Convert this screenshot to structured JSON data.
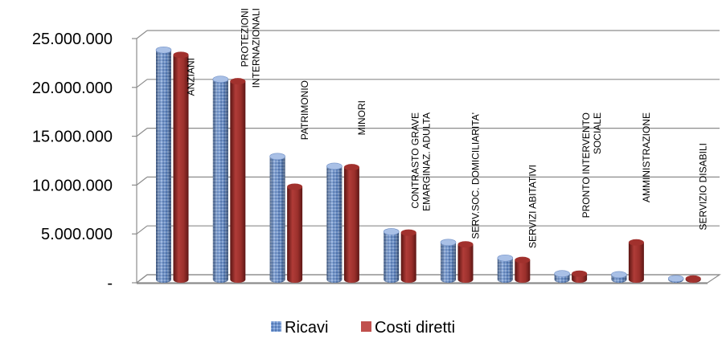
{
  "chart_data": {
    "type": "bar",
    "title": "",
    "xlabel": "",
    "ylabel": "",
    "ylim": [
      0,
      25000000
    ],
    "yticks": [
      "-",
      "5.000.000",
      "10.000.000",
      "15.000.000",
      "20.000.000",
      "25.000.000"
    ],
    "grid": true,
    "legend_position": "bottom",
    "categories": [
      "ANZIANI",
      "PROTEZIONI INTERNAZIONALI",
      "PATRIMONIO",
      "MINORI",
      "CONTRASTO GRAVE EMARGINAZ. ADULTA",
      "SERV.SOC. DOMICILIARITA'",
      "SERVIZI ABITATIVI",
      "PRONTO INTERVENTO SOCIALE",
      "AMMINISTRAZIONE",
      "SERVIZIO DISABILI"
    ],
    "category_label_lines": [
      [
        "ANZIANI"
      ],
      [
        "PROTEZIONI",
        "INTERNAZIONALI"
      ],
      [
        "PATRIMONIO"
      ],
      [
        "MINORI"
      ],
      [
        "CONTRASTO GRAVE",
        "EMARGINAZ. ADULTA"
      ],
      [
        "SERV.SOC. DOMICILIARITA'"
      ],
      [
        "SERVIZI ABITATIVI"
      ],
      [
        "PRONTO INTERVENTO",
        "SOCIALE"
      ],
      [
        "AMMINISTRAZIONE"
      ],
      [
        "SERVIZIO DISABILI"
      ]
    ],
    "series": [
      {
        "name": "Ricavi",
        "color": "#4f81bd",
        "values": [
          23500000,
          20500000,
          12600000,
          11600000,
          4900000,
          3800000,
          2200000,
          600000,
          500000,
          100000
        ]
      },
      {
        "name": "Costi diretti",
        "color": "#c0504d",
        "values": [
          23000000,
          20300000,
          9500000,
          11500000,
          4800000,
          3600000,
          2000000,
          600000,
          3800000,
          100000
        ]
      }
    ]
  },
  "legend": {
    "ricavi_label": "Ricavi",
    "costi_label": "Costi diretti"
  }
}
